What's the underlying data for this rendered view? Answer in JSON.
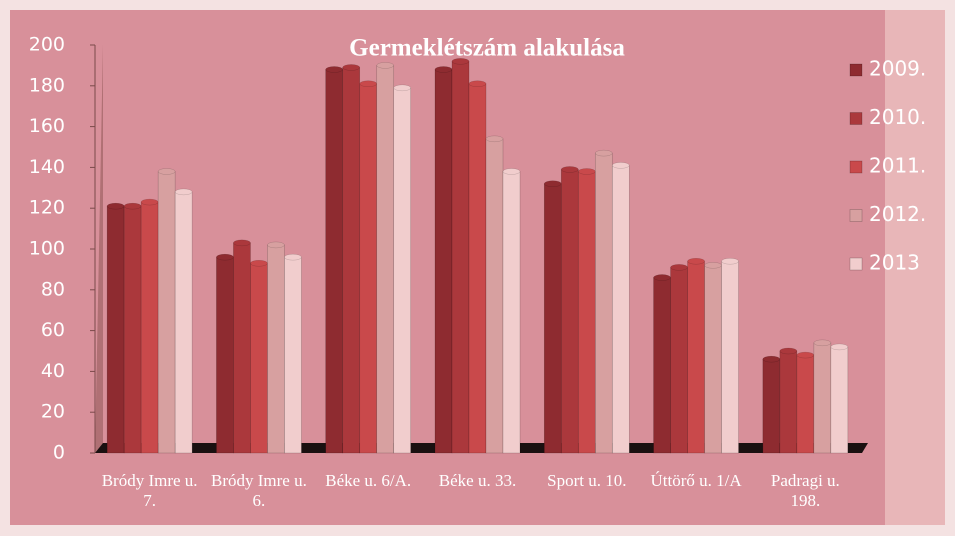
{
  "chart_data": {
    "type": "bar",
    "title": "Germeklétszám alakulása",
    "categories": [
      "Bródy Imre u. 7.",
      "Bródy Imre u. 6.",
      "Béke u. 6/A.",
      "Béke u. 33.",
      "Sport u. 10.",
      "Úttörő u. 1/A",
      "Padragi u. 198."
    ],
    "series": [
      {
        "name": "2009.",
        "color": "#8e2b30",
        "values": [
          121,
          96,
          188,
          188,
          132,
          86,
          46
        ]
      },
      {
        "name": "2010.",
        "color": "#ab383c",
        "values": [
          121,
          103,
          189,
          192,
          139,
          91,
          50
        ]
      },
      {
        "name": "2011.",
        "color": "#c9494b",
        "values": [
          123,
          93,
          181,
          181,
          138,
          94,
          48
        ]
      },
      {
        "name": "2012.",
        "color": "#d7a0a0",
        "values": [
          138,
          102,
          190,
          154,
          147,
          92,
          54
        ]
      },
      {
        "name": "2013",
        "color": "#f1cdcd",
        "values": [
          128,
          96,
          179,
          138,
          141,
          94,
          52
        ]
      }
    ],
    "ylim": [
      0,
      200
    ],
    "yticks": [
      0,
      20,
      40,
      60,
      80,
      100,
      120,
      140,
      160,
      180,
      200
    ]
  }
}
